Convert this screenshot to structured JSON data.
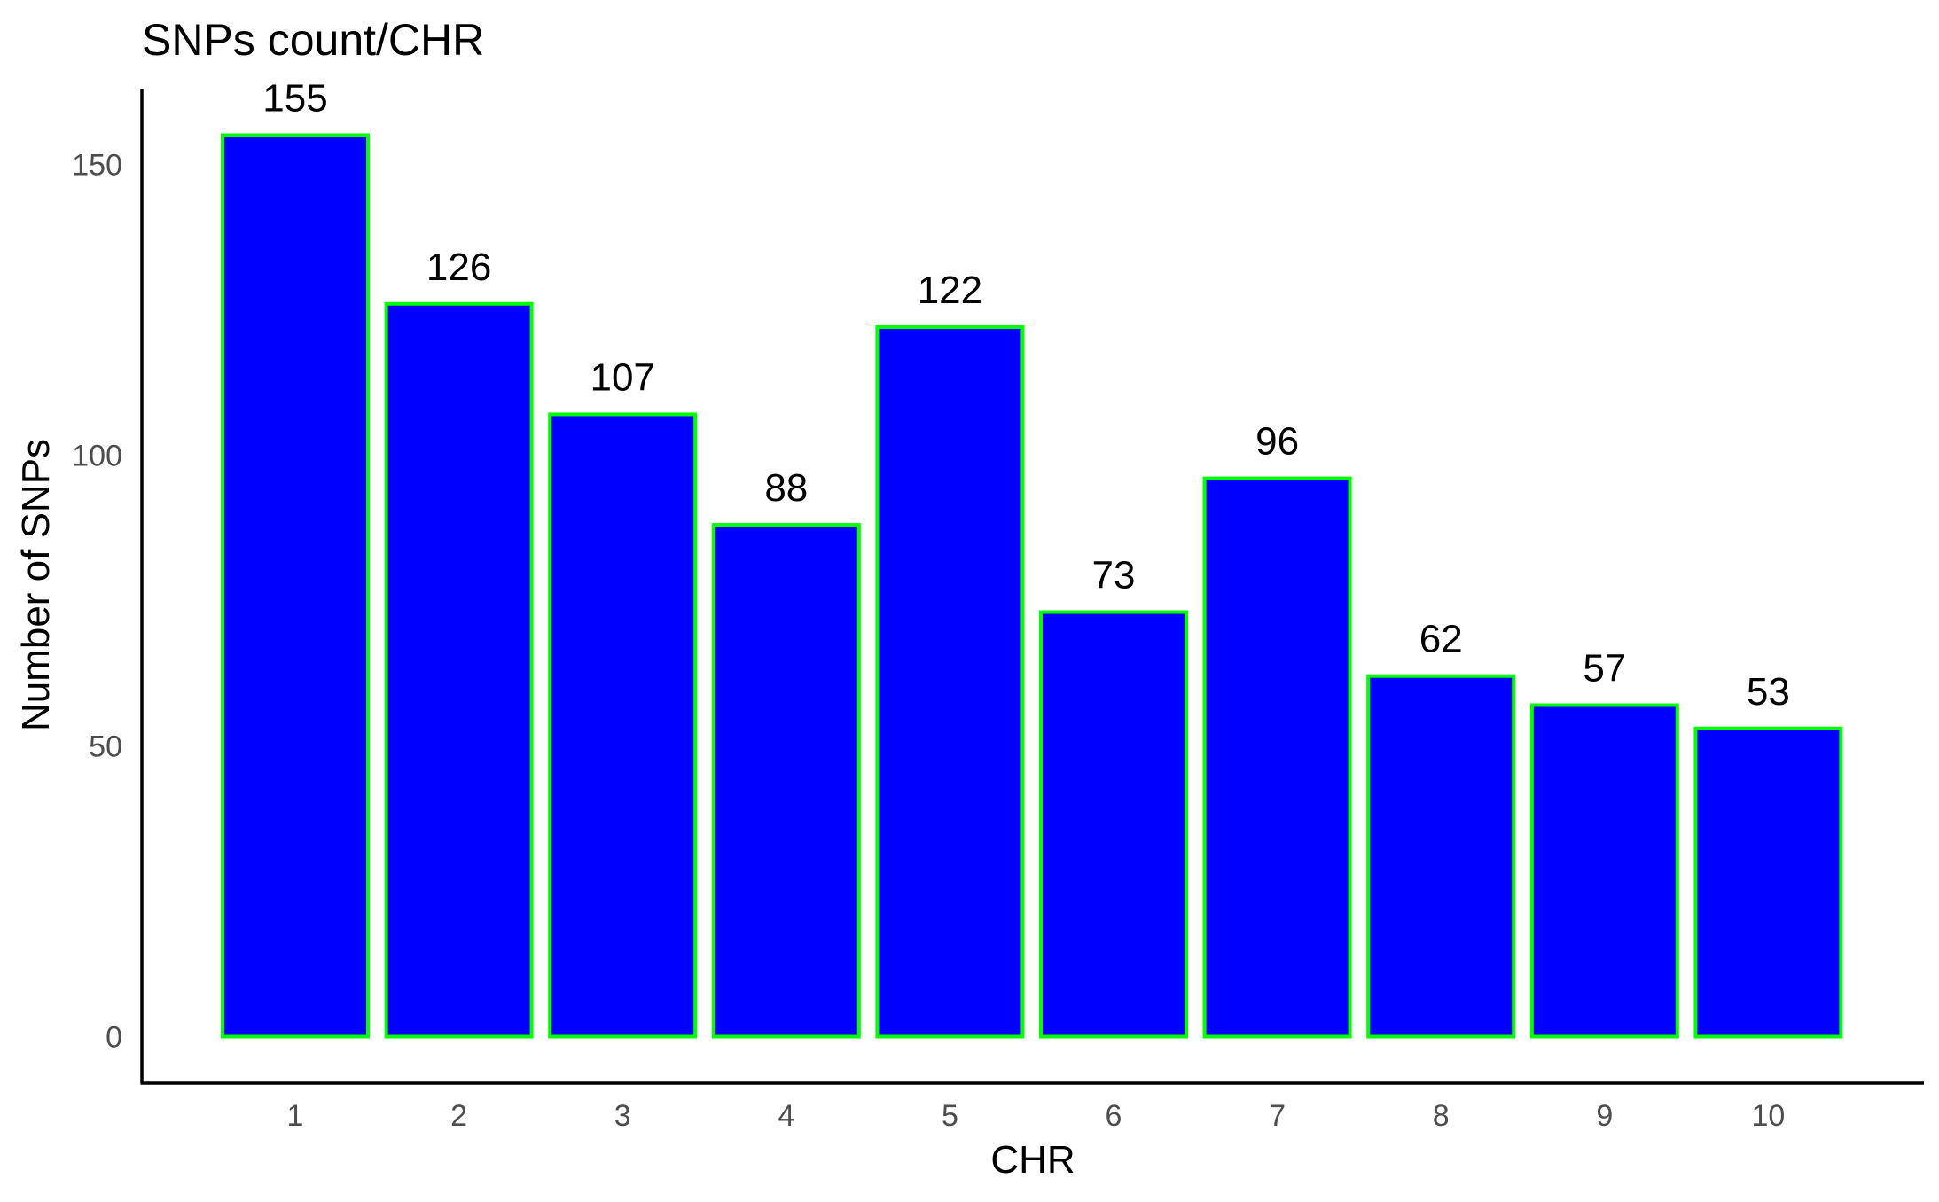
{
  "chart_data": {
    "type": "bar",
    "title": "SNPs count/CHR",
    "xlabel": "CHR",
    "ylabel": "Number of SNPs",
    "categories": [
      "1",
      "2",
      "3",
      "4",
      "5",
      "6",
      "7",
      "8",
      "9",
      "10"
    ],
    "values": [
      155,
      126,
      107,
      88,
      122,
      73,
      96,
      62,
      57,
      53
    ],
    "data_labels": [
      "155",
      "126",
      "107",
      "88",
      "122",
      "73",
      "96",
      "62",
      "57",
      "53"
    ],
    "y_ticks": [
      0,
      50,
      100,
      150
    ],
    "y_tick_labels": [
      "0",
      "50",
      "100",
      "150"
    ],
    "ylim": [
      -8,
      163
    ],
    "grid": false,
    "legend": "none",
    "colors": {
      "bar_fill": "#0000ff",
      "bar_outline": "#00ff00",
      "axis_line": "#000000",
      "tick_text": "#4d4d4d",
      "text": "#000000"
    }
  }
}
